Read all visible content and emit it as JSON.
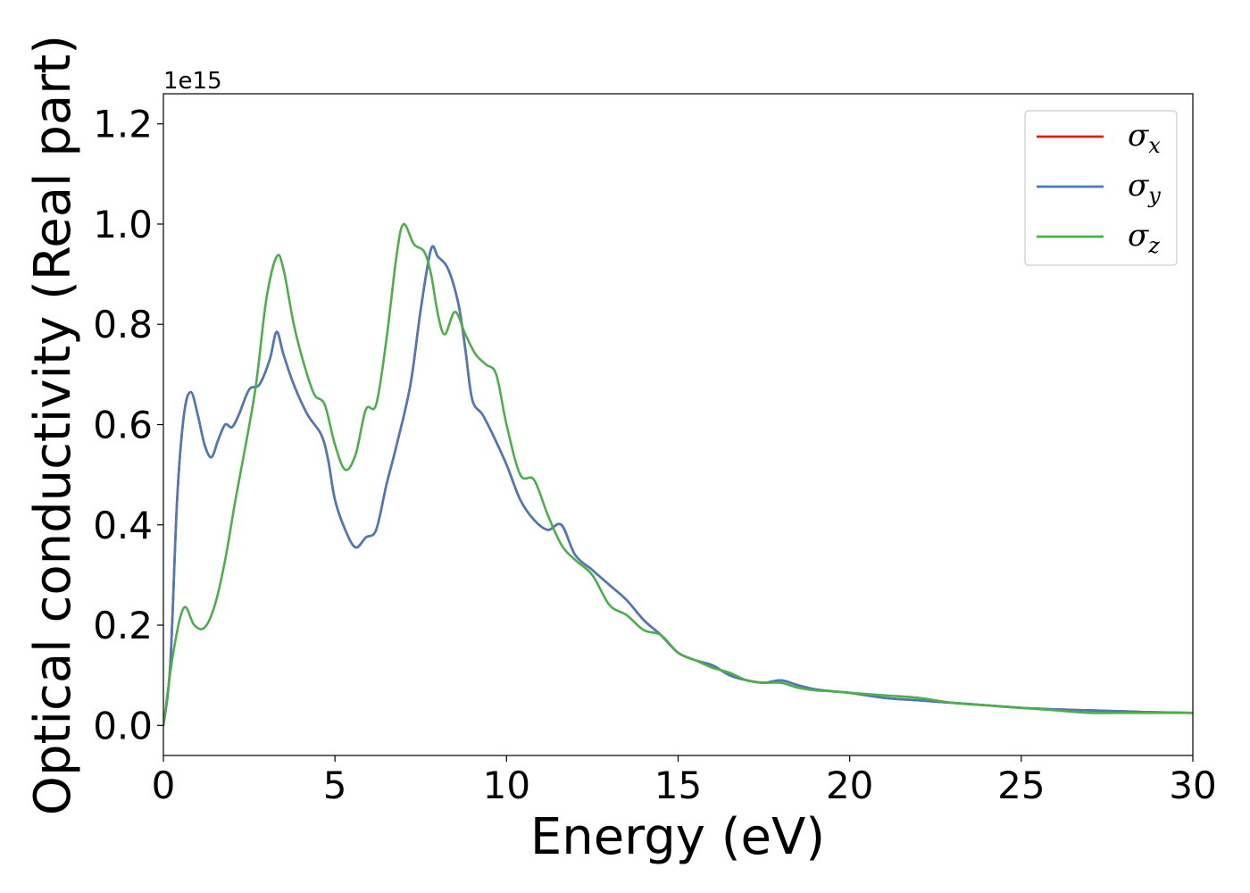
{
  "chart_data": {
    "type": "line",
    "xlabel": "Energy (eV)",
    "ylabel": "Optical conductivity (Real part)",
    "y_offset_text": "1e15",
    "xlim": [
      0,
      30
    ],
    "ylim": [
      -0.06,
      1.26
    ],
    "xticks": [
      0,
      5,
      10,
      15,
      20,
      25,
      30
    ],
    "xtick_labels": [
      "0",
      "5",
      "10",
      "15",
      "20",
      "25",
      "30"
    ],
    "yticks": [
      0.0,
      0.2,
      0.4,
      0.6,
      0.8,
      1.0,
      1.2
    ],
    "ytick_labels": [
      "0.0",
      "0.2",
      "0.4",
      "0.6",
      "0.8",
      "1.0",
      "1.2"
    ],
    "grid": false,
    "legend_position": "top-right",
    "series": [
      {
        "name": "σx",
        "symbol": "σ",
        "subscript": "x",
        "color": "#e41a1c",
        "x": [
          0,
          0.2,
          0.4,
          0.6,
          0.8,
          1.0,
          1.2,
          1.4,
          1.6,
          1.8,
          2.0,
          2.2,
          2.5,
          2.8,
          3.1,
          3.3,
          3.5,
          3.8,
          4.2,
          4.6,
          4.8,
          5.0,
          5.3,
          5.6,
          5.9,
          6.2,
          6.5,
          6.8,
          7.2,
          7.5,
          7.8,
          8.0,
          8.3,
          8.6,
          8.8,
          9.0,
          9.3,
          9.6,
          10.0,
          10.4,
          10.8,
          11.2,
          11.6,
          12.0,
          12.5,
          13.0,
          13.5,
          14.0,
          14.5,
          15.0,
          15.5,
          16.0,
          16.5,
          17.0,
          17.5,
          18.0,
          18.5,
          19.0,
          19.5,
          20.0,
          21.0,
          22.0,
          23.0,
          24.0,
          25.0,
          26.0,
          27.0,
          28.0,
          29.0,
          30.0
        ],
        "y": [
          0.0,
          0.12,
          0.45,
          0.62,
          0.665,
          0.62,
          0.56,
          0.535,
          0.57,
          0.6,
          0.595,
          0.62,
          0.67,
          0.68,
          0.73,
          0.785,
          0.74,
          0.68,
          0.62,
          0.58,
          0.53,
          0.45,
          0.39,
          0.355,
          0.375,
          0.39,
          0.48,
          0.56,
          0.68,
          0.83,
          0.95,
          0.935,
          0.91,
          0.84,
          0.75,
          0.65,
          0.62,
          0.58,
          0.52,
          0.45,
          0.41,
          0.39,
          0.4,
          0.34,
          0.31,
          0.28,
          0.25,
          0.21,
          0.18,
          0.145,
          0.13,
          0.12,
          0.1,
          0.09,
          0.085,
          0.09,
          0.08,
          0.072,
          0.068,
          0.065,
          0.055,
          0.05,
          0.045,
          0.04,
          0.035,
          0.032,
          0.03,
          0.028,
          0.026,
          0.025
        ]
      },
      {
        "name": "σy",
        "symbol": "σ",
        "subscript": "y",
        "color": "#4a7ab8",
        "x": [
          0,
          0.2,
          0.4,
          0.6,
          0.8,
          1.0,
          1.2,
          1.4,
          1.6,
          1.8,
          2.0,
          2.2,
          2.5,
          2.8,
          3.1,
          3.3,
          3.5,
          3.8,
          4.2,
          4.6,
          4.8,
          5.0,
          5.3,
          5.6,
          5.9,
          6.2,
          6.5,
          6.8,
          7.2,
          7.5,
          7.8,
          8.0,
          8.3,
          8.6,
          8.8,
          9.0,
          9.3,
          9.6,
          10.0,
          10.4,
          10.8,
          11.2,
          11.6,
          12.0,
          12.5,
          13.0,
          13.5,
          14.0,
          14.5,
          15.0,
          15.5,
          16.0,
          16.5,
          17.0,
          17.5,
          18.0,
          18.5,
          19.0,
          19.5,
          20.0,
          21.0,
          22.0,
          23.0,
          24.0,
          25.0,
          26.0,
          27.0,
          28.0,
          29.0,
          30.0
        ],
        "y": [
          0.0,
          0.12,
          0.45,
          0.62,
          0.665,
          0.62,
          0.56,
          0.535,
          0.57,
          0.6,
          0.595,
          0.62,
          0.67,
          0.68,
          0.73,
          0.785,
          0.74,
          0.68,
          0.62,
          0.58,
          0.53,
          0.45,
          0.39,
          0.355,
          0.375,
          0.39,
          0.48,
          0.56,
          0.68,
          0.83,
          0.95,
          0.935,
          0.91,
          0.84,
          0.75,
          0.65,
          0.62,
          0.58,
          0.52,
          0.45,
          0.41,
          0.39,
          0.4,
          0.34,
          0.31,
          0.28,
          0.25,
          0.21,
          0.18,
          0.145,
          0.13,
          0.12,
          0.1,
          0.09,
          0.085,
          0.09,
          0.08,
          0.072,
          0.068,
          0.065,
          0.055,
          0.05,
          0.045,
          0.04,
          0.035,
          0.032,
          0.03,
          0.028,
          0.026,
          0.025
        ]
      },
      {
        "name": "σz",
        "symbol": "σ",
        "subscript": "z",
        "color": "#4daf4a",
        "x": [
          0,
          0.3,
          0.6,
          0.9,
          1.2,
          1.5,
          1.8,
          2.1,
          2.4,
          2.7,
          3.0,
          3.3,
          3.5,
          3.8,
          4.1,
          4.4,
          4.7,
          5.0,
          5.3,
          5.6,
          5.9,
          6.2,
          6.5,
          6.8,
          7.0,
          7.3,
          7.6,
          7.8,
          8.0,
          8.2,
          8.5,
          8.8,
          9.1,
          9.4,
          9.7,
          10.0,
          10.4,
          10.8,
          11.2,
          11.6,
          12.0,
          12.5,
          13.0,
          13.5,
          14.0,
          14.5,
          15.0,
          15.5,
          16.0,
          16.5,
          17.0,
          17.5,
          18.0,
          18.5,
          19.0,
          19.5,
          20.0,
          21.0,
          22.0,
          23.0,
          24.0,
          25.0,
          26.0,
          27.0,
          28.0,
          29.0,
          30.0
        ],
        "y": [
          0.0,
          0.15,
          0.235,
          0.2,
          0.195,
          0.24,
          0.33,
          0.45,
          0.56,
          0.68,
          0.85,
          0.935,
          0.91,
          0.8,
          0.72,
          0.66,
          0.64,
          0.56,
          0.51,
          0.54,
          0.63,
          0.64,
          0.77,
          0.94,
          1.0,
          0.96,
          0.945,
          0.9,
          0.82,
          0.78,
          0.825,
          0.78,
          0.74,
          0.72,
          0.7,
          0.6,
          0.5,
          0.49,
          0.42,
          0.36,
          0.33,
          0.3,
          0.24,
          0.22,
          0.19,
          0.18,
          0.145,
          0.13,
          0.115,
          0.105,
          0.09,
          0.085,
          0.085,
          0.075,
          0.07,
          0.068,
          0.065,
          0.06,
          0.055,
          0.045,
          0.04,
          0.035,
          0.03,
          0.025,
          0.025,
          0.025,
          0.025
        ]
      }
    ]
  }
}
